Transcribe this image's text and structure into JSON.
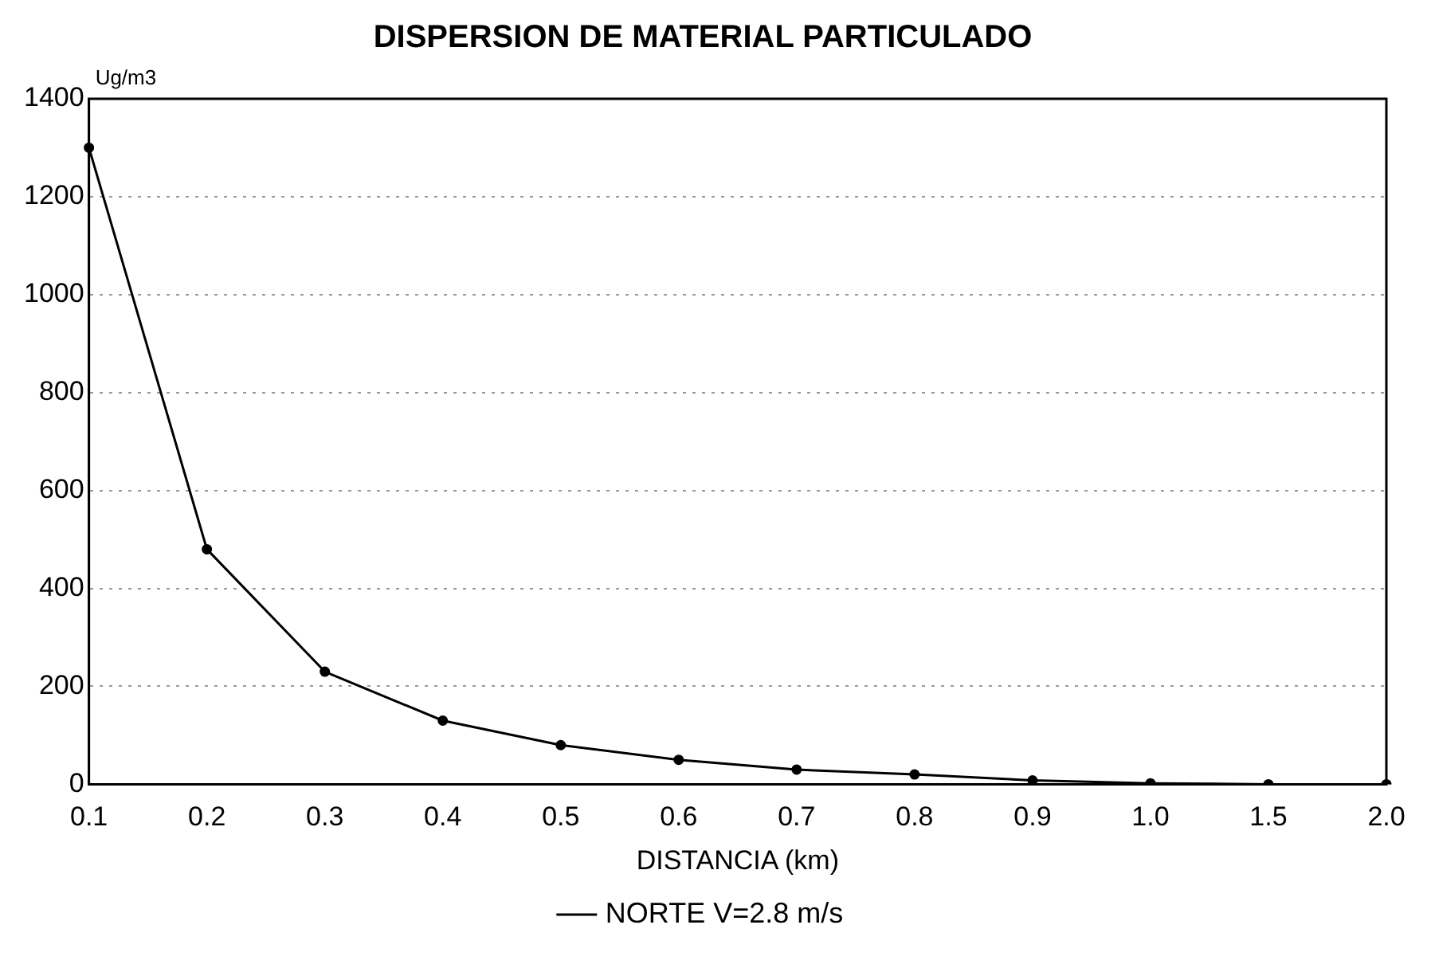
{
  "chart_data": {
    "type": "line",
    "title": "DISPERSION DE MATERIAL PARTICULADO",
    "xlabel": "DISTANCIA (km)",
    "ylabel": "Ug/m3",
    "categories": [
      "0.1",
      "0.2",
      "0.3",
      "0.4",
      "0.5",
      "0.6",
      "0.7",
      "0.8",
      "0.9",
      "1.0",
      "1.5",
      "2.0"
    ],
    "series": [
      {
        "name": "NORTE V=2.8 m/s",
        "color": "#000000",
        "values": [
          1300,
          480,
          230,
          130,
          80,
          50,
          30,
          20,
          8,
          2,
          0,
          0
        ]
      }
    ],
    "ylim": [
      0,
      1400
    ],
    "yticks": [
      0,
      200,
      400,
      600,
      800,
      1000,
      1200,
      1400
    ],
    "grid": "y",
    "legend": "bottom",
    "marker": "circle",
    "line_style": "solid"
  }
}
